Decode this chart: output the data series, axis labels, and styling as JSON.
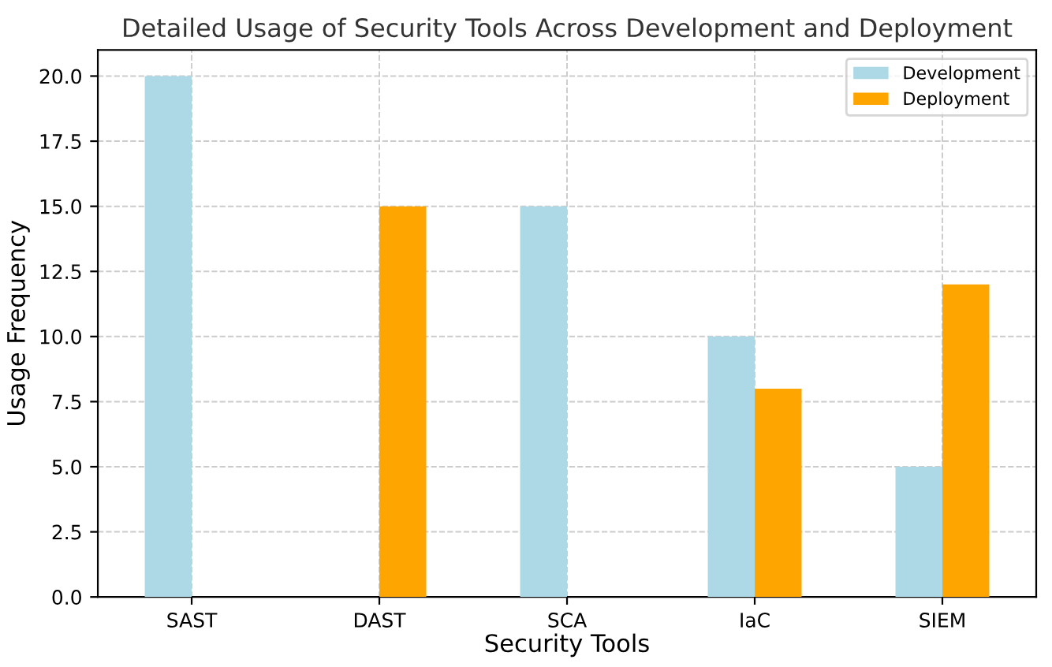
{
  "chart_data": {
    "type": "bar",
    "title": "Detailed Usage of Security Tools Across Development and Deployment",
    "xlabel": "Security Tools",
    "ylabel": "Usage Frequency",
    "categories": [
      "SAST",
      "DAST",
      "SCA",
      "IaC",
      "SIEM"
    ],
    "series": [
      {
        "name": "Development",
        "color": "#add8e6",
        "values": [
          20,
          0,
          15,
          10,
          5
        ]
      },
      {
        "name": "Deployment",
        "color": "#ffa500",
        "values": [
          0,
          15,
          0,
          8,
          12
        ]
      }
    ],
    "ylim": [
      0,
      21
    ],
    "yticks": [
      {
        "value": 0,
        "label": "0.0"
      },
      {
        "value": 2.5,
        "label": "2.5"
      },
      {
        "value": 5,
        "label": "5.0"
      },
      {
        "value": 7.5,
        "label": "7.5"
      },
      {
        "value": 10,
        "label": "10.0"
      },
      {
        "value": 12.5,
        "label": "12.5"
      },
      {
        "value": 15,
        "label": "15.0"
      },
      {
        "value": 17.5,
        "label": "17.5"
      },
      {
        "value": 20,
        "label": "20.0"
      }
    ],
    "grid": true,
    "legend": "top right"
  }
}
